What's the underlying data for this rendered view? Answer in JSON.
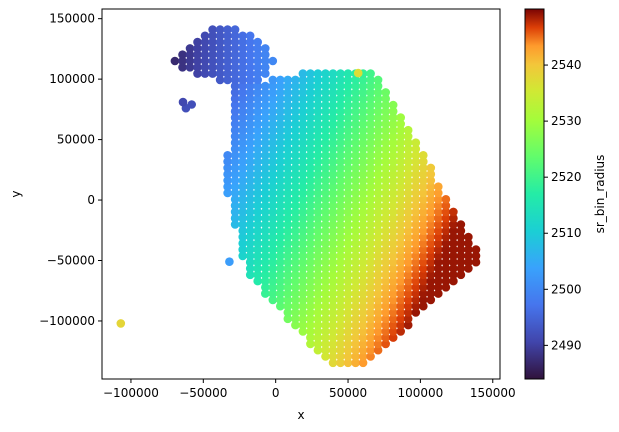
{
  "chart_data": {
    "type": "scatter",
    "title": "",
    "xlabel": "x",
    "ylabel": "y",
    "xlim": [
      -120000,
      155000
    ],
    "ylim": [
      -148000,
      158000
    ],
    "xticks": [
      -100000,
      -50000,
      0,
      50000,
      100000,
      150000
    ],
    "xtick_labels": [
      "−100000",
      "−50000",
      "0",
      "50000",
      "100000",
      "150000"
    ],
    "yticks": [
      -100000,
      -50000,
      0,
      50000,
      100000,
      150000
    ],
    "ytick_labels": [
      "−100000",
      "−50000",
      "0",
      "50000",
      "100000",
      "150000"
    ],
    "grid": false,
    "colorbar": {
      "label": "sr_bin_radius",
      "colormap": "turbo",
      "range": [
        2484,
        2550
      ],
      "ticks": [
        2490,
        2500,
        2510,
        2520,
        2530,
        2540
      ],
      "tick_labels": [
        "2490",
        "2500",
        "2510",
        "2520",
        "2530",
        "2540"
      ]
    },
    "points": [
      {
        "x": -107000,
        "y": -102000,
        "c": 2538
      },
      {
        "x": 57000,
        "y": 105000,
        "c": 2537
      },
      {
        "x": -32000,
        "y": -51000,
        "c": 2503
      },
      {
        "x": -58000,
        "y": 79000,
        "c": 2492
      },
      {
        "x": -62000,
        "y": 76000,
        "c": 2492
      },
      {
        "x": -64000,
        "y": 81000,
        "c": 2491
      }
    ],
    "regions": [
      {
        "name": "main-band",
        "poly": [
          [
            -30000,
            95000
          ],
          [
            0,
            100000
          ],
          [
            20000,
            105000
          ],
          [
            70000,
            105000
          ],
          [
            143000,
            -48000
          ],
          [
            95000,
            -100000
          ],
          [
            60000,
            -140000
          ],
          [
            35000,
            -135000
          ],
          [
            -20000,
            -60000
          ],
          [
            -35000,
            10000
          ],
          [
            -30000,
            95000
          ]
        ],
        "c0": [
          -30000,
          95000
        ],
        "c1": [
          143000,
          30000
        ],
        "cmin": 2495,
        "cmax": 2549
      },
      {
        "name": "top-left-arm",
        "poly": [
          [
            -75000,
            112000
          ],
          [
            -40000,
            145000
          ],
          [
            -20000,
            140000
          ],
          [
            0,
            118000
          ],
          [
            -10000,
            95000
          ],
          [
            -45000,
            100000
          ],
          [
            -75000,
            112000
          ]
        ],
        "c0": [
          -75000,
          112000
        ],
        "c1": [
          -5000,
          110000
        ],
        "cmin": 2486,
        "cmax": 2500
      }
    ]
  }
}
